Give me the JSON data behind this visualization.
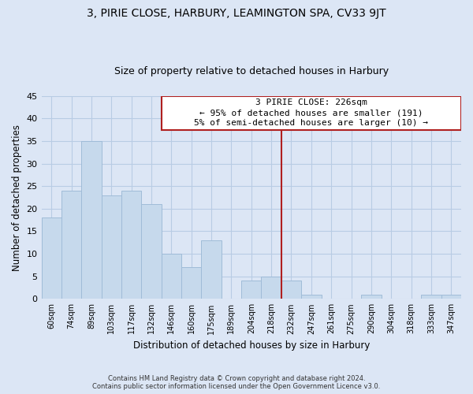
{
  "title": "3, PIRIE CLOSE, HARBURY, LEAMINGTON SPA, CV33 9JT",
  "subtitle": "Size of property relative to detached houses in Harbury",
  "xlabel": "Distribution of detached houses by size in Harbury",
  "ylabel": "Number of detached properties",
  "bar_labels": [
    "60sqm",
    "74sqm",
    "89sqm",
    "103sqm",
    "117sqm",
    "132sqm",
    "146sqm",
    "160sqm",
    "175sqm",
    "189sqm",
    "204sqm",
    "218sqm",
    "232sqm",
    "247sqm",
    "261sqm",
    "275sqm",
    "290sqm",
    "304sqm",
    "318sqm",
    "333sqm",
    "347sqm"
  ],
  "bar_values": [
    18,
    24,
    35,
    23,
    24,
    21,
    10,
    7,
    13,
    0,
    4,
    5,
    4,
    1,
    0,
    0,
    1,
    0,
    0,
    1,
    1
  ],
  "bar_color": "#c6d9ec",
  "bar_edge_color": "#a0bcd8",
  "ylim": [
    0,
    45
  ],
  "yticks": [
    0,
    5,
    10,
    15,
    20,
    25,
    30,
    35,
    40,
    45
  ],
  "vline_color": "#b02020",
  "annotation_box": {
    "title": "3 PIRIE CLOSE: 226sqm",
    "line1": "← 95% of detached houses are smaller (191)",
    "line2": "5% of semi-detached houses are larger (10) →"
  },
  "footer_line1": "Contains HM Land Registry data © Crown copyright and database right 2024.",
  "footer_line2": "Contains public sector information licensed under the Open Government Licence v3.0.",
  "background_color": "#dce6f5",
  "grid_color": "#b8cce4"
}
